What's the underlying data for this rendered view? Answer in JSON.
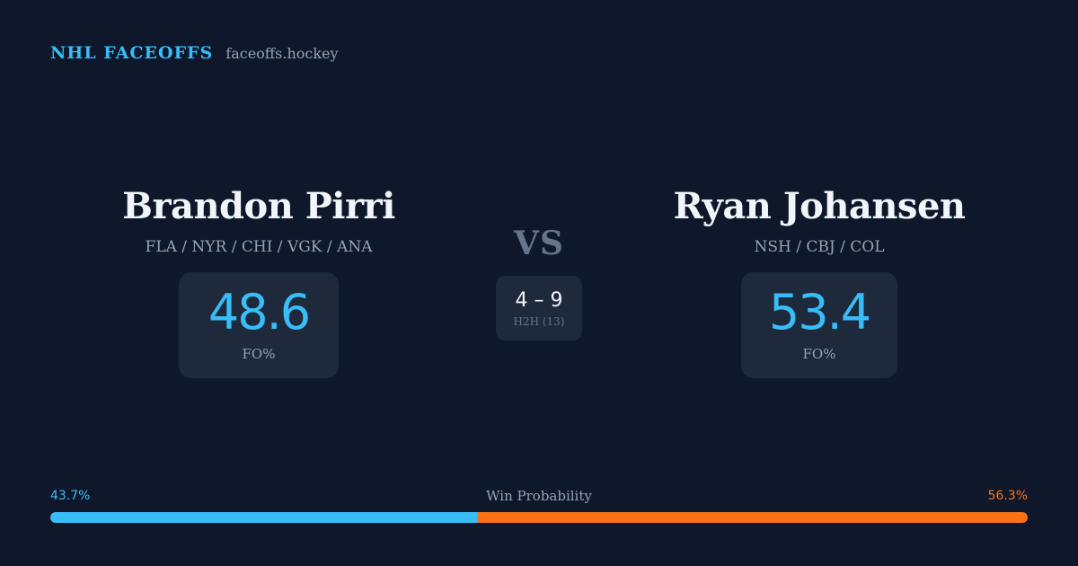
{
  "brand": {
    "name": "NHL FACEOFFS",
    "domain": "faceoffs.hockey"
  },
  "player_left": {
    "name": "Brandon Pirri",
    "teams": "FLA / NYR / CHI / VGK / ANA",
    "fo_value": "48.6",
    "fo_label": "FO%"
  },
  "player_right": {
    "name": "Ryan Johansen",
    "teams": "NSH / CBJ / COL",
    "fo_value": "53.4",
    "fo_label": "FO%"
  },
  "vs_label": "VS",
  "h2h": {
    "score": "4 – 9",
    "label": "H2H (13)"
  },
  "win_probability": {
    "title": "Win Probability",
    "left_label": "43.7%",
    "right_label": "56.3%",
    "left_value": 43.7,
    "right_value": 56.3
  },
  "colors": {
    "background": "#0f172a",
    "card": "#1e293b",
    "accent_left": "#38bdf8",
    "accent_right": "#f97316",
    "muted": "#94a3b8"
  }
}
